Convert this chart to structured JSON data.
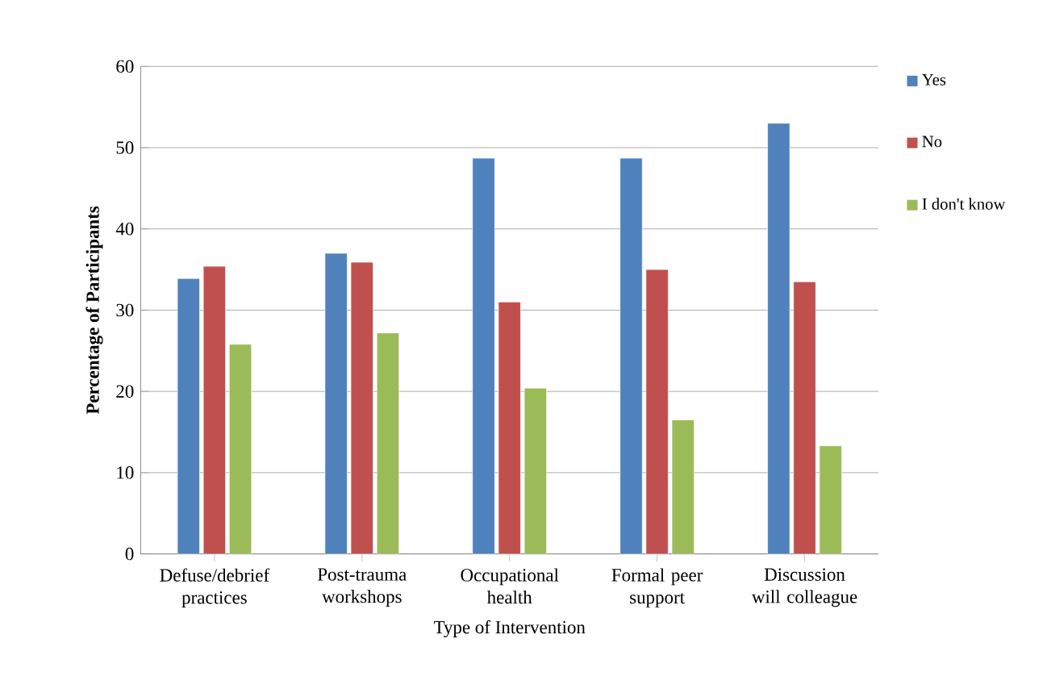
{
  "chart_data": {
    "type": "bar",
    "xlabel": "Type of Intervention",
    "ylabel": "Percentage of Participants",
    "categories": [
      "Defuse/debrief practices",
      "Post-trauma workshops",
      "Occupational health",
      "Formal peer support",
      "Discussion will colleague"
    ],
    "series": [
      {
        "name": "Yes",
        "color": "#4f81bd",
        "values": [
          33.9,
          37.0,
          48.7,
          48.7,
          53.0
        ]
      },
      {
        "name": "No",
        "color": "#c0504d",
        "values": [
          35.4,
          35.9,
          31.0,
          35.0,
          33.5
        ]
      },
      {
        "name": "I don't know",
        "color": "#9bbb59",
        "values": [
          25.8,
          27.2,
          20.4,
          16.5,
          13.3
        ]
      }
    ],
    "ylim": [
      0,
      60
    ],
    "yticks": [
      0,
      10,
      20,
      30,
      40,
      50,
      60
    ],
    "grid": "y",
    "legend": "right"
  }
}
